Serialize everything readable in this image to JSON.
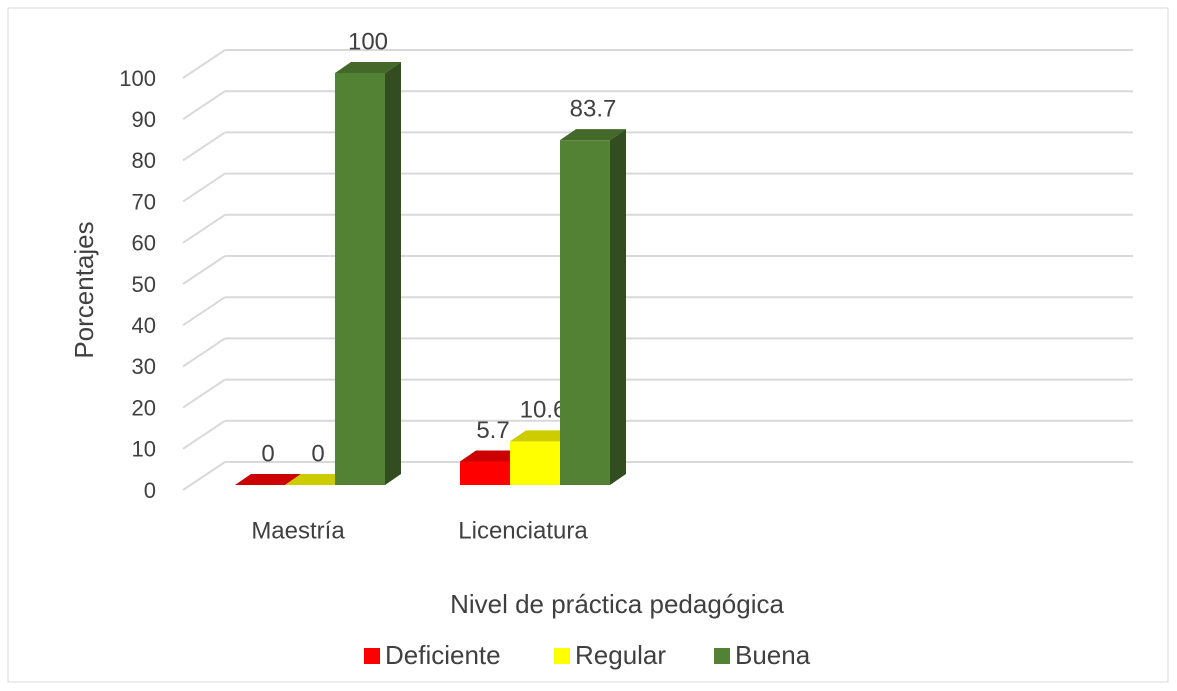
{
  "chart_data": {
    "type": "bar3d",
    "categories": [
      "Maestría",
      "Licenciatura"
    ],
    "series": [
      {
        "name": "Deficiente",
        "color": "#ff0000",
        "values": [
          0,
          5.7
        ]
      },
      {
        "name": "Regular",
        "color": "#ffff00",
        "values": [
          0,
          10.6
        ]
      },
      {
        "name": "Buena",
        "color": "#548235",
        "values": [
          100,
          83.7
        ]
      }
    ],
    "ylim": [
      0,
      100
    ],
    "yticks": [
      0,
      10,
      20,
      30,
      40,
      50,
      60,
      70,
      80,
      90,
      100
    ],
    "grid": true,
    "xlabel": "Nivel de práctica pedagógica",
    "ylabel": "Porcentajes",
    "legend": "bottom"
  }
}
